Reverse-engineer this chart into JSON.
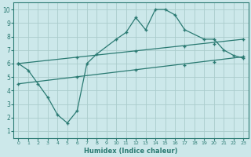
{
  "xlabel": "Humidex (Indice chaleur)",
  "ylabel": "",
  "xlim": [
    -0.5,
    23.5
  ],
  "ylim": [
    0.5,
    10.5
  ],
  "xticks": [
    0,
    1,
    2,
    3,
    4,
    5,
    6,
    7,
    8,
    9,
    10,
    11,
    12,
    13,
    14,
    15,
    16,
    17,
    18,
    19,
    20,
    21,
    22,
    23
  ],
  "yticks": [
    1,
    2,
    3,
    4,
    5,
    6,
    7,
    8,
    9,
    10
  ],
  "background_color": "#cce8ea",
  "grid_color": "#aacccc",
  "line_color": "#2a7a72",
  "line1_x": [
    0,
    1,
    2,
    3,
    4,
    5,
    6,
    7,
    8,
    10,
    11,
    12,
    13,
    14,
    15,
    16,
    17,
    19,
    20,
    21,
    22,
    23
  ],
  "line1_y": [
    6.0,
    5.5,
    4.5,
    3.5,
    2.2,
    1.6,
    2.5,
    6.0,
    6.7,
    7.8,
    8.3,
    9.4,
    8.5,
    10.0,
    10.0,
    9.6,
    8.5,
    7.8,
    7.8,
    7.0,
    6.6,
    6.4
  ],
  "line2_x": [
    0,
    23
  ],
  "line2_y": [
    6.0,
    7.8
  ],
  "line3_x": [
    0,
    23
  ],
  "line3_y": [
    4.5,
    6.5
  ],
  "line2_markers_x": [
    0,
    6,
    12,
    17,
    20,
    23
  ],
  "line2_markers_y": [
    6.0,
    6.47,
    6.94,
    7.27,
    7.47,
    7.8
  ],
  "line3_markers_x": [
    0,
    6,
    12,
    17,
    20,
    23
  ],
  "line3_markers_y": [
    4.5,
    5.02,
    5.54,
    5.89,
    6.11,
    6.5
  ]
}
